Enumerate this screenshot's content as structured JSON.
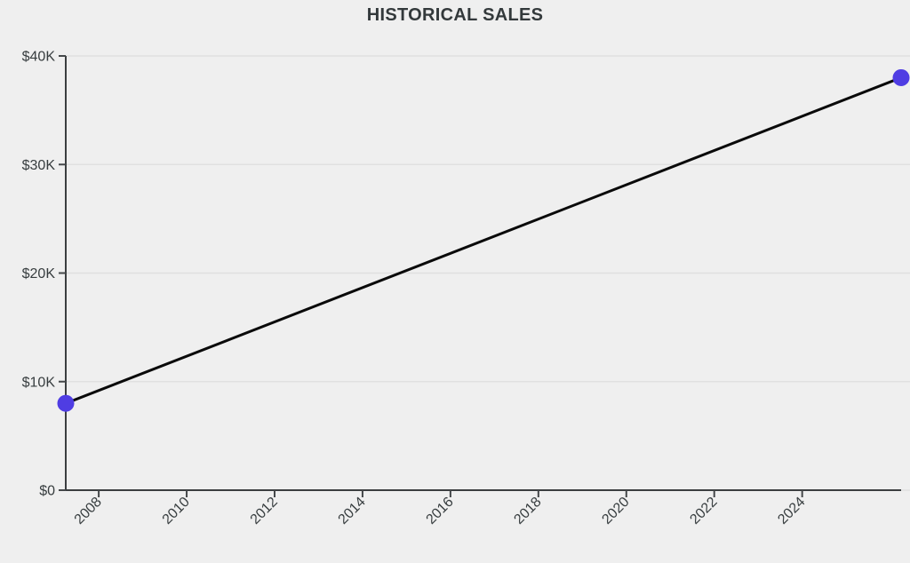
{
  "chart_data": {
    "type": "line",
    "title": "HISTORICAL SALES",
    "xlabel": "",
    "ylabel": "",
    "series": [
      {
        "name": "Historical Sales",
        "points": [
          {
            "x": 2007.25,
            "y": 8000
          },
          {
            "x": 2026.25,
            "y": 38000
          }
        ]
      }
    ],
    "xlim": [
      2007.25,
      2026.25
    ],
    "ylim": [
      0,
      40000
    ],
    "x_ticks": [
      {
        "value": 2008,
        "label": "2008"
      },
      {
        "value": 2010,
        "label": "2010"
      },
      {
        "value": 2012,
        "label": "2012"
      },
      {
        "value": 2014,
        "label": "2014"
      },
      {
        "value": 2016,
        "label": "2016"
      },
      {
        "value": 2018,
        "label": "2018"
      },
      {
        "value": 2020,
        "label": "2020"
      },
      {
        "value": 2022,
        "label": "2022"
      },
      {
        "value": 2024,
        "label": "2024"
      }
    ],
    "y_ticks": [
      {
        "value": 0,
        "label": "$0"
      },
      {
        "value": 10000,
        "label": "$10K"
      },
      {
        "value": 20000,
        "label": "$20K"
      },
      {
        "value": 30000,
        "label": "$30K"
      },
      {
        "value": 40000,
        "label": "$40K"
      }
    ],
    "x_label_rotation": -45,
    "grid": "horizontal-only",
    "legend": "none",
    "style": {
      "background": "#efefef",
      "line_color": "#0a0a0a",
      "marker_color": "#4f3de3",
      "grid_color": "#e0e0e0",
      "axis_color": "#3b3e40",
      "tick_color": "#45484a",
      "label_color": "#373d3f",
      "title_color": "#33393b"
    }
  }
}
